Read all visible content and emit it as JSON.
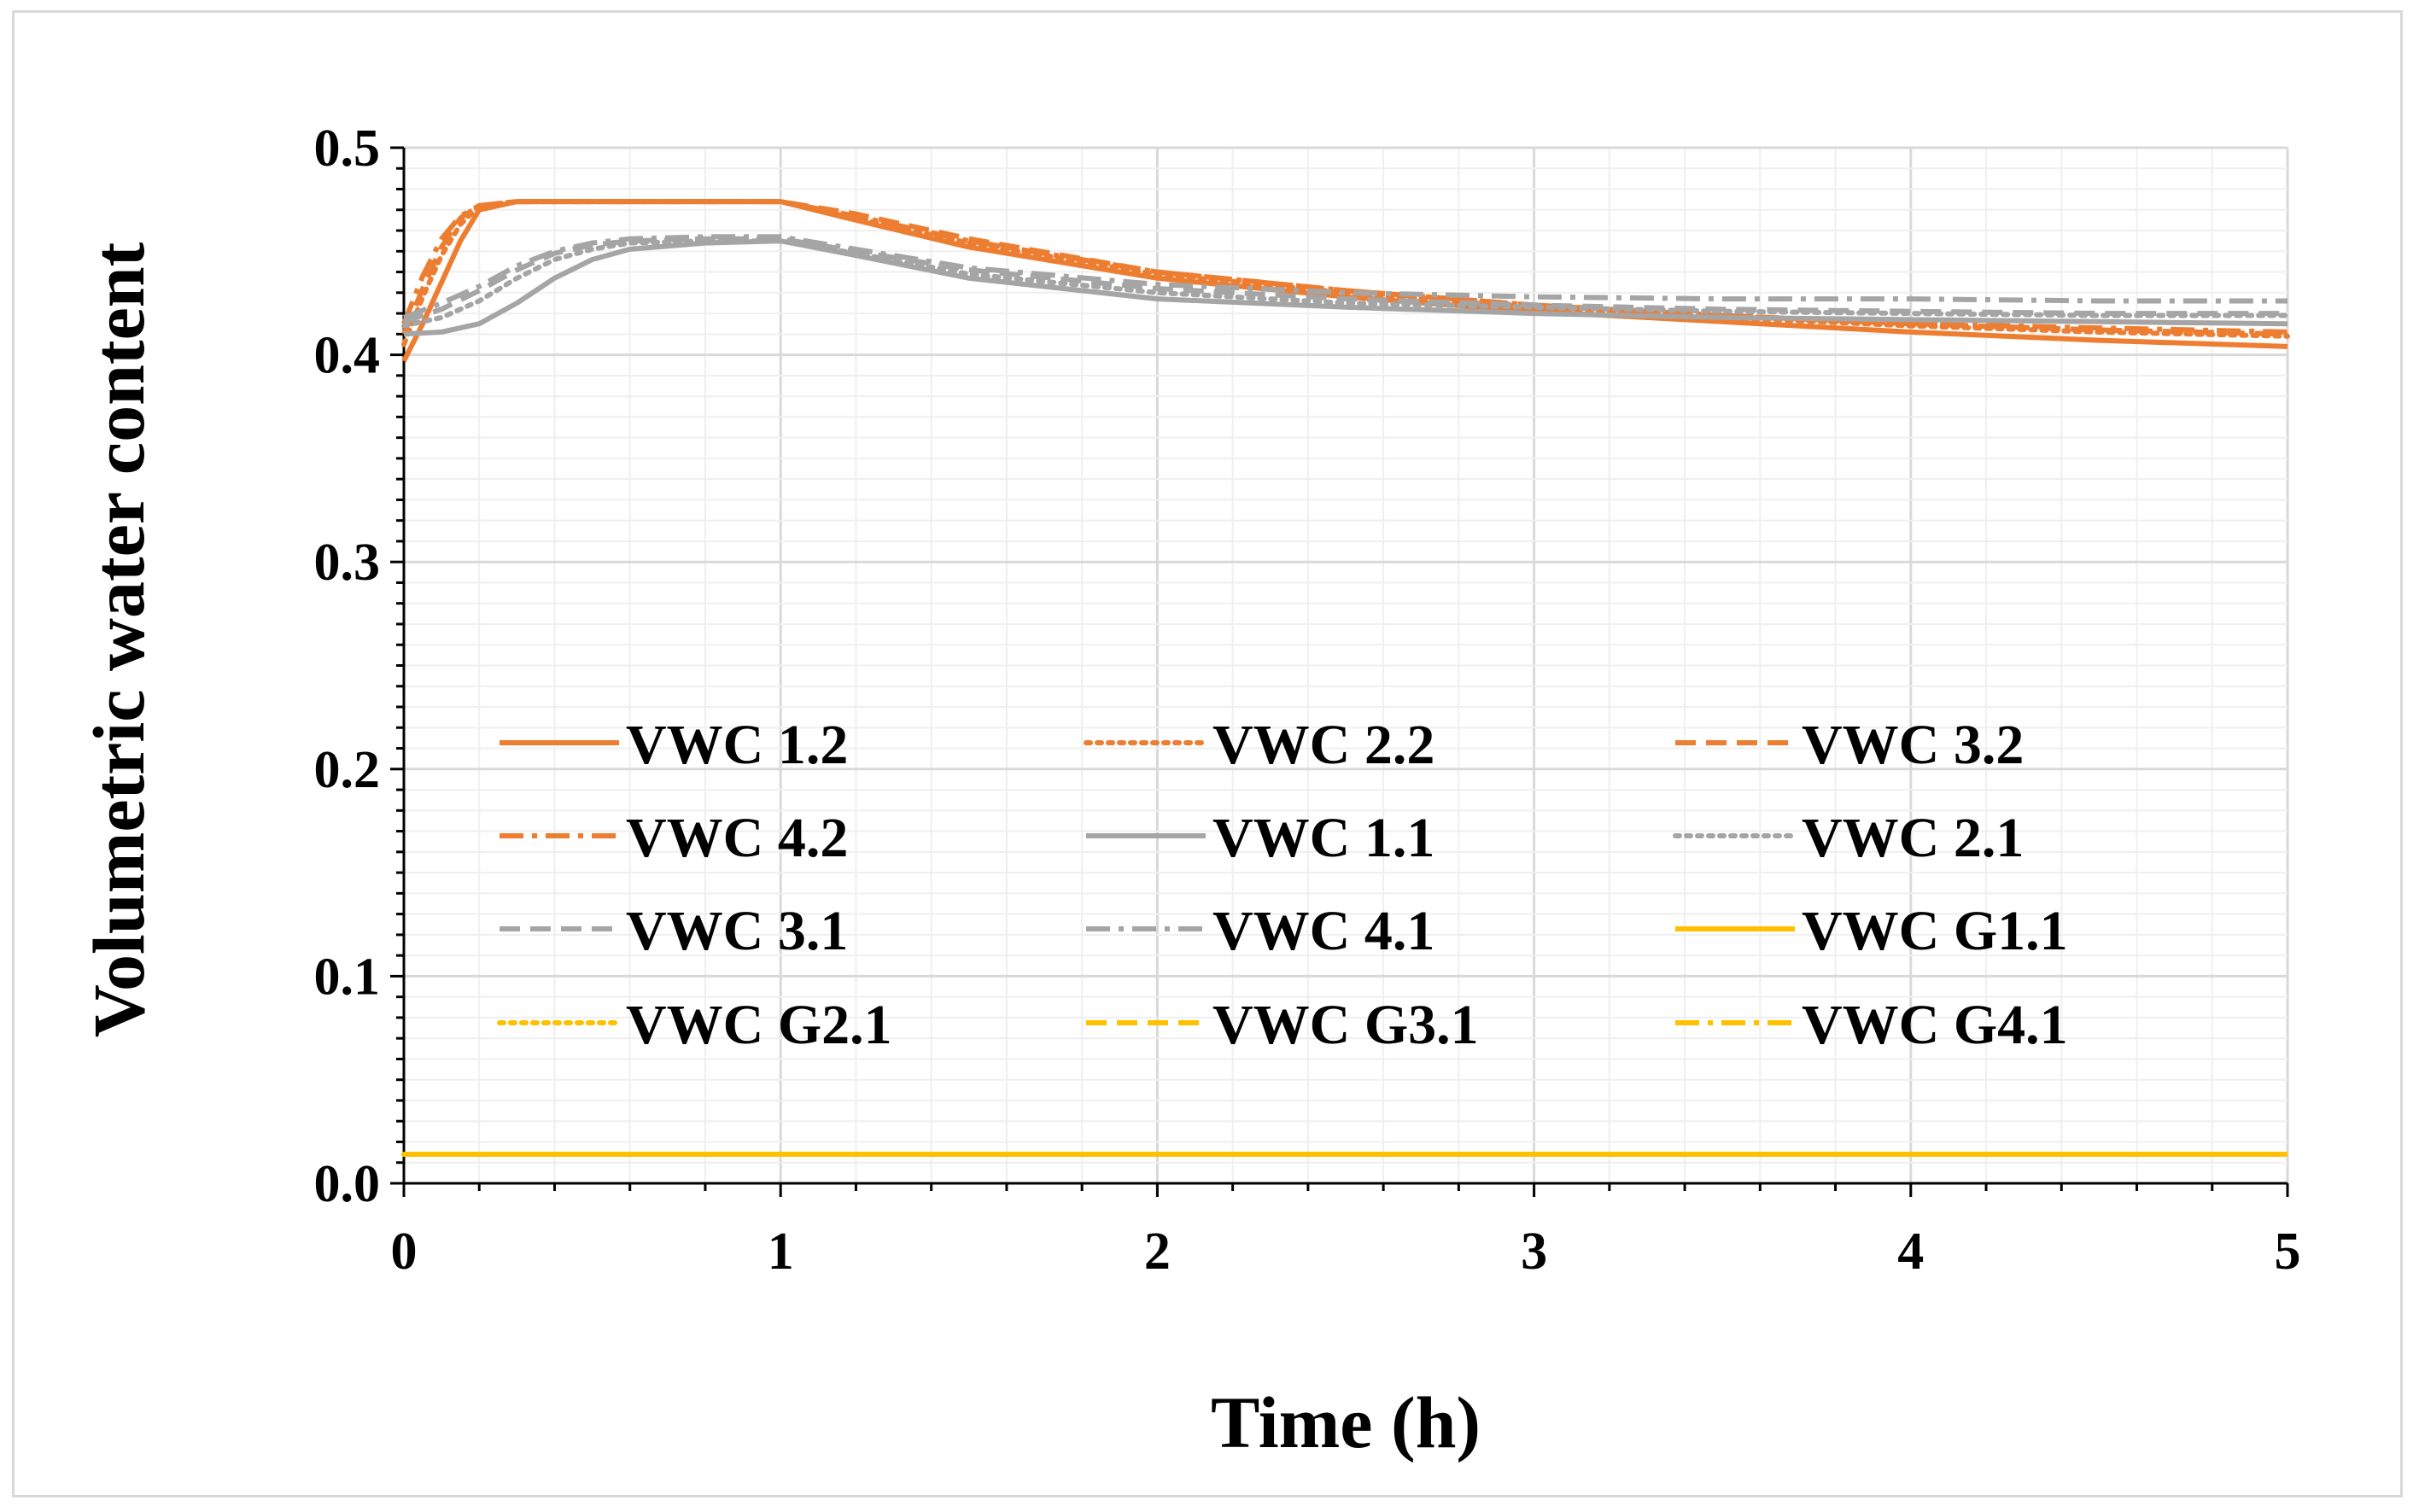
{
  "chart_data": {
    "type": "line",
    "title": "",
    "xlabel": "Time (h)",
    "ylabel": "Volumetric water content",
    "xlim": [
      0,
      5
    ],
    "ylim": [
      0.0,
      0.5
    ],
    "xticks": [
      "0",
      "1",
      "2",
      "3",
      "4",
      "5"
    ],
    "yticks": [
      "0.0",
      "0.1",
      "0.2",
      "0.3",
      "0.4",
      "0.5"
    ],
    "grid": true,
    "legend_position": "center-left, inside plot",
    "series": [
      {
        "name": "VWC 1.2",
        "color": "#ED7D31",
        "dash": "solid",
        "x": [
          0,
          0.05,
          0.1,
          0.15,
          0.2,
          0.3,
          0.5,
          0.8,
          1.0,
          1.2,
          1.5,
          2.0,
          2.5,
          3.0,
          3.5,
          4.0,
          4.5,
          5.0
        ],
        "y": [
          0.397,
          0.415,
          0.435,
          0.455,
          0.47,
          0.474,
          0.474,
          0.474,
          0.474,
          0.465,
          0.452,
          0.437,
          0.428,
          0.421,
          0.416,
          0.411,
          0.407,
          0.404
        ]
      },
      {
        "name": "VWC 2.2",
        "color": "#ED7D31",
        "dash": "dot",
        "x": [
          0,
          0.05,
          0.1,
          0.15,
          0.2,
          0.3,
          0.5,
          0.8,
          1.0,
          1.2,
          1.5,
          2.0,
          2.5,
          3.0,
          3.5,
          4.0,
          4.5,
          5.0
        ],
        "y": [
          0.405,
          0.428,
          0.448,
          0.463,
          0.472,
          0.474,
          0.474,
          0.474,
          0.474,
          0.466,
          0.454,
          0.439,
          0.43,
          0.423,
          0.418,
          0.414,
          0.411,
          0.409
        ]
      },
      {
        "name": "VWC 3.2",
        "color": "#ED7D31",
        "dash": "dash",
        "x": [
          0,
          0.05,
          0.1,
          0.15,
          0.2,
          0.3,
          0.5,
          0.8,
          1.0,
          1.2,
          1.5,
          2.0,
          2.5,
          3.0,
          3.5,
          4.0,
          4.5,
          5.0
        ],
        "y": [
          0.41,
          0.432,
          0.452,
          0.466,
          0.472,
          0.474,
          0.474,
          0.474,
          0.474,
          0.468,
          0.456,
          0.44,
          0.431,
          0.424,
          0.419,
          0.415,
          0.412,
          0.41
        ]
      },
      {
        "name": "VWC 4.2",
        "color": "#ED7D31",
        "dash": "dashdot",
        "x": [
          0,
          0.05,
          0.1,
          0.15,
          0.2,
          0.3,
          0.5,
          0.8,
          1.0,
          1.2,
          1.5,
          2.0,
          2.5,
          3.0,
          3.5,
          4.0,
          4.5,
          5.0
        ],
        "y": [
          0.415,
          0.438,
          0.456,
          0.467,
          0.472,
          0.474,
          0.474,
          0.474,
          0.474,
          0.467,
          0.455,
          0.44,
          0.431,
          0.424,
          0.419,
          0.415,
          0.413,
          0.411
        ]
      },
      {
        "name": "VWC 1.1",
        "color": "#A5A5A5",
        "dash": "solid",
        "x": [
          0,
          0.1,
          0.2,
          0.3,
          0.4,
          0.5,
          0.6,
          0.8,
          1.0,
          1.2,
          1.5,
          2.0,
          2.5,
          3.0,
          3.5,
          4.0,
          4.5,
          5.0
        ],
        "y": [
          0.41,
          0.411,
          0.415,
          0.425,
          0.437,
          0.446,
          0.451,
          0.454,
          0.455,
          0.448,
          0.437,
          0.427,
          0.423,
          0.42,
          0.418,
          0.417,
          0.416,
          0.415
        ]
      },
      {
        "name": "VWC 2.1",
        "color": "#A5A5A5",
        "dash": "dot",
        "x": [
          0,
          0.1,
          0.2,
          0.3,
          0.4,
          0.5,
          0.6,
          0.8,
          1.0,
          1.2,
          1.5,
          2.0,
          2.5,
          3.0,
          3.5,
          4.0,
          4.5,
          5.0
        ],
        "y": [
          0.414,
          0.418,
          0.426,
          0.437,
          0.446,
          0.451,
          0.454,
          0.455,
          0.455,
          0.449,
          0.439,
          0.43,
          0.425,
          0.423,
          0.421,
          0.42,
          0.419,
          0.419
        ]
      },
      {
        "name": "VWC 3.1",
        "color": "#A5A5A5",
        "dash": "dash",
        "x": [
          0,
          0.1,
          0.2,
          0.3,
          0.4,
          0.5,
          0.6,
          0.8,
          1.0,
          1.2,
          1.5,
          2.0,
          2.5,
          3.0,
          3.5,
          4.0,
          4.5,
          5.0
        ],
        "y": [
          0.416,
          0.422,
          0.431,
          0.441,
          0.449,
          0.453,
          0.455,
          0.456,
          0.456,
          0.45,
          0.441,
          0.432,
          0.427,
          0.424,
          0.422,
          0.421,
          0.42,
          0.42
        ]
      },
      {
        "name": "VWC 4.1",
        "color": "#A5A5A5",
        "dash": "dashdot",
        "x": [
          0,
          0.1,
          0.2,
          0.3,
          0.4,
          0.5,
          0.6,
          0.8,
          1.0,
          1.2,
          1.5,
          2.0,
          2.5,
          3.0,
          3.5,
          4.0,
          4.5,
          5.0
        ],
        "y": [
          0.418,
          0.425,
          0.433,
          0.443,
          0.45,
          0.454,
          0.456,
          0.457,
          0.457,
          0.451,
          0.442,
          0.434,
          0.43,
          0.428,
          0.427,
          0.427,
          0.426,
          0.426
        ]
      },
      {
        "name": "VWC G1.1",
        "color": "#FFC000",
        "dash": "solid",
        "x": [
          0,
          1,
          2,
          3,
          4,
          5
        ],
        "y": [
          0.014,
          0.014,
          0.014,
          0.014,
          0.014,
          0.014
        ]
      },
      {
        "name": "VWC G2.1",
        "color": "#FFC000",
        "dash": "dot",
        "x": [
          0,
          1,
          2,
          3,
          4,
          5
        ],
        "y": [
          0.014,
          0.014,
          0.014,
          0.014,
          0.014,
          0.014
        ]
      },
      {
        "name": "VWC G3.1",
        "color": "#FFC000",
        "dash": "dash",
        "x": [
          0,
          1,
          2,
          3,
          4,
          5
        ],
        "y": [
          0.014,
          0.014,
          0.014,
          0.014,
          0.014,
          0.014
        ]
      },
      {
        "name": "VWC G4.1",
        "color": "#FFC000",
        "dash": "dashdot",
        "x": [
          0,
          1,
          2,
          3,
          4,
          5
        ],
        "y": [
          0.014,
          0.014,
          0.014,
          0.014,
          0.014,
          0.014
        ]
      }
    ]
  }
}
